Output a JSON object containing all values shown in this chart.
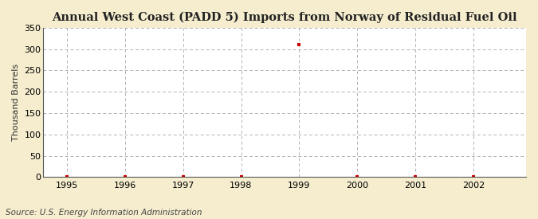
{
  "title": "Annual West Coast (PADD 5) Imports from Norway of Residual Fuel Oil",
  "ylabel": "Thousand Barrels",
  "source": "Source: U.S. Energy Information Administration",
  "xlim": [
    1994.6,
    2002.9
  ],
  "ylim": [
    0,
    350
  ],
  "yticks": [
    0,
    50,
    100,
    150,
    200,
    250,
    300,
    350
  ],
  "xticks": [
    1995,
    1996,
    1997,
    1998,
    1999,
    2000,
    2001,
    2002
  ],
  "data_x": [
    1995,
    1996,
    1997,
    1998,
    1999,
    2000,
    2001,
    2002
  ],
  "data_y": [
    0,
    0,
    0,
    0,
    311,
    0,
    0,
    0
  ],
  "marker_color": "#cc0000",
  "marker": "s",
  "marker_size": 3,
  "background_color": "#f5edce",
  "plot_bg_color": "#ffffff",
  "grid_color": "#aaaaaa",
  "title_fontsize": 10.5,
  "label_fontsize": 8,
  "tick_fontsize": 8,
  "source_fontsize": 7.5
}
